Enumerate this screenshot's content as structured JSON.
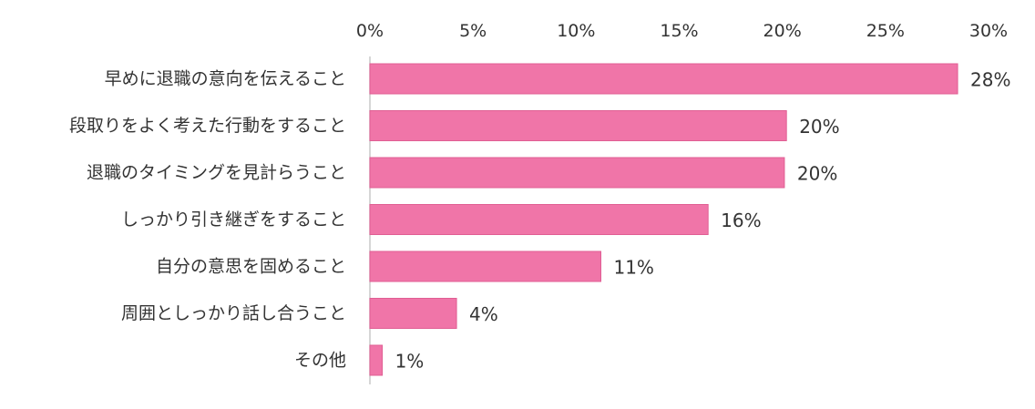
{
  "chart_data": {
    "type": "bar",
    "orientation": "horizontal",
    "categories": [
      "早めに退職の意向を伝えること",
      "段取りをよく考えた行動をすること",
      "退職のタイミングを見計らうこと",
      "しっかり引き継ぎをすること",
      "自分の意思を固めること",
      "周囲としっかり話し合うこと",
      "その他"
    ],
    "values": [
      28.5,
      20.2,
      20.1,
      16.4,
      11.2,
      4.2,
      0.6
    ],
    "value_labels": [
      "28%",
      "20%",
      "20%",
      "16%",
      "11%",
      "4%",
      "1%"
    ],
    "xlim": [
      0,
      30
    ],
    "x_ticks": [
      0,
      5,
      10,
      15,
      20,
      25,
      30
    ],
    "x_tick_labels": [
      "0%",
      "5%",
      "10%",
      "15%",
      "20%",
      "25%",
      "30%"
    ],
    "x_axis_position": "top",
    "grid": false,
    "bar_color": "#f075a8",
    "bar_stroke_color": "#e05e93",
    "axis_color": "#c8c8c8"
  }
}
